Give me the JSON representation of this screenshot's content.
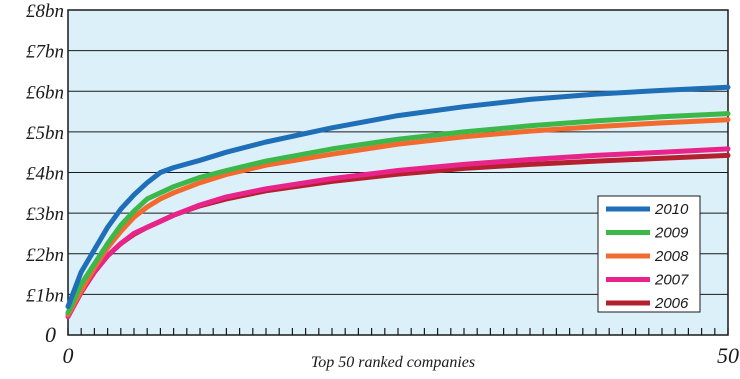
{
  "chart_data": {
    "type": "line",
    "title": "",
    "xlabel": "Top 50 ranked companies",
    "ylabel": "",
    "xlim": [
      0,
      50
    ],
    "ylim": [
      0,
      8
    ],
    "x_tick_labels": [
      "0",
      "50"
    ],
    "y_tick_labels": [
      "0",
      "£1bn",
      "£2bn",
      "£3bn",
      "£4bn",
      "£5bn",
      "£6bn",
      "£7bn",
      "£8bn"
    ],
    "grid": true,
    "legend_position": "bottom-right",
    "background_color": "#dcf0fa",
    "x": [
      0,
      1,
      2,
      3,
      4,
      5,
      6,
      7,
      8,
      10,
      12,
      15,
      20,
      25,
      30,
      35,
      40,
      45,
      50
    ],
    "series": [
      {
        "name": "2010",
        "color": "#1f6fb8",
        "values": [
          0.7,
          1.55,
          2.1,
          2.65,
          3.1,
          3.45,
          3.75,
          4.0,
          4.12,
          4.3,
          4.5,
          4.75,
          5.1,
          5.4,
          5.62,
          5.8,
          5.93,
          6.02,
          6.1
        ]
      },
      {
        "name": "2009",
        "color": "#3cb84a",
        "values": [
          0.55,
          1.25,
          1.75,
          2.25,
          2.7,
          3.05,
          3.35,
          3.5,
          3.65,
          3.88,
          4.05,
          4.28,
          4.58,
          4.82,
          5.0,
          5.15,
          5.27,
          5.37,
          5.45
        ]
      },
      {
        "name": "2008",
        "color": "#f26a2e",
        "values": [
          0.5,
          1.1,
          1.65,
          2.15,
          2.55,
          2.9,
          3.15,
          3.35,
          3.5,
          3.75,
          3.95,
          4.18,
          4.45,
          4.7,
          4.88,
          5.02,
          5.13,
          5.22,
          5.3
        ]
      },
      {
        "name": "2007",
        "color": "#e8238a",
        "values": [
          0.45,
          1.05,
          1.55,
          1.95,
          2.25,
          2.5,
          2.65,
          2.8,
          2.95,
          3.2,
          3.4,
          3.6,
          3.85,
          4.05,
          4.2,
          4.32,
          4.42,
          4.5,
          4.58
        ]
      },
      {
        "name": "2006",
        "color": "#b5202e",
        "values": [
          0.5,
          1.05,
          1.55,
          1.95,
          2.25,
          2.48,
          2.65,
          2.8,
          2.95,
          3.18,
          3.35,
          3.55,
          3.78,
          3.96,
          4.1,
          4.2,
          4.28,
          4.35,
          4.42
        ]
      }
    ]
  }
}
